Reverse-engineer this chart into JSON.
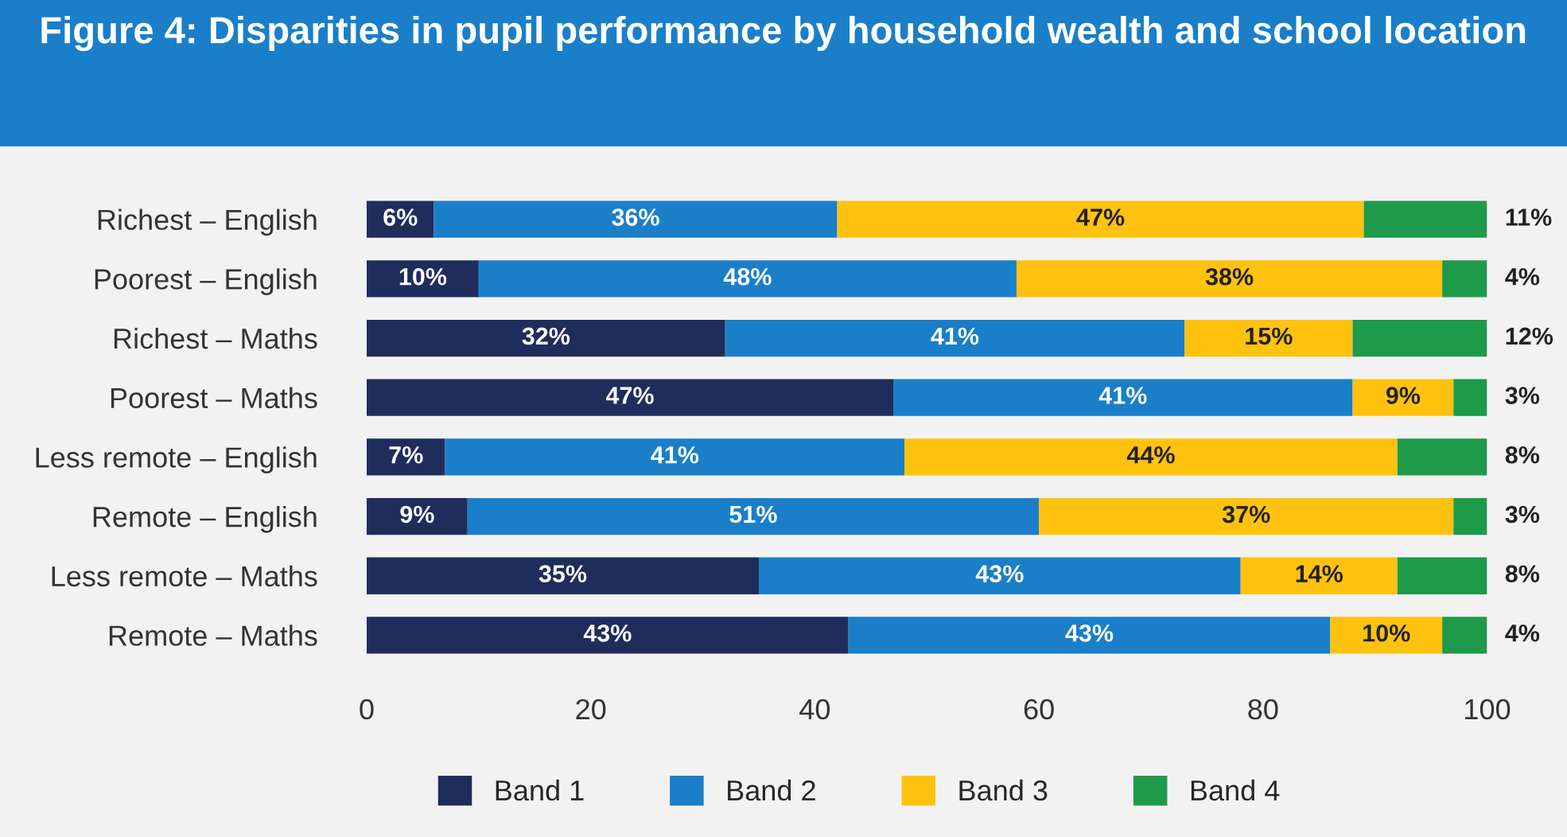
{
  "chart_data": {
    "type": "bar",
    "orientation": "horizontal",
    "stacked": true,
    "title": "Figure 4: Disparities in pupil performance by household wealth and school location",
    "categories": [
      "Richest – English",
      "Poorest – English",
      "Richest – Maths",
      "Poorest – Maths",
      "Less remote – English",
      "Remote – English",
      "Less remote – Maths",
      "Remote – Maths"
    ],
    "series": [
      {
        "name": "Band 1",
        "color": "#1f2d5c",
        "values": [
          6,
          10,
          32,
          47,
          7,
          9,
          35,
          43
        ],
        "value_labels": [
          "6%",
          "10%",
          "32%",
          "47%",
          "7%",
          "9%",
          "35%",
          "43%"
        ]
      },
      {
        "name": "Band 2",
        "color": "#1a7fc8",
        "values": [
          36,
          48,
          41,
          41,
          41,
          51,
          43,
          43
        ],
        "value_labels": [
          "36%",
          "48%",
          "41%",
          "41%",
          "41%",
          "51%",
          "43%",
          "43%"
        ]
      },
      {
        "name": "Band 3",
        "color": "#ffc20e",
        "values": [
          47,
          38,
          15,
          9,
          44,
          37,
          14,
          10
        ],
        "value_labels": [
          "47%",
          "38%",
          "15%",
          "9%",
          "44%",
          "37%",
          "14%",
          "10%"
        ]
      },
      {
        "name": "Band 4",
        "color": "#1e9a4a",
        "values": [
          11,
          4,
          12,
          3,
          8,
          3,
          8,
          4
        ],
        "value_labels": [
          "11%",
          "4%",
          "12%",
          "3%",
          "8%",
          "3%",
          "8%",
          "4%"
        ]
      }
    ],
    "xlim": [
      0,
      100
    ],
    "xticks": [
      0,
      20,
      40,
      60,
      80,
      100
    ],
    "grid": false,
    "legend": "bottom"
  }
}
